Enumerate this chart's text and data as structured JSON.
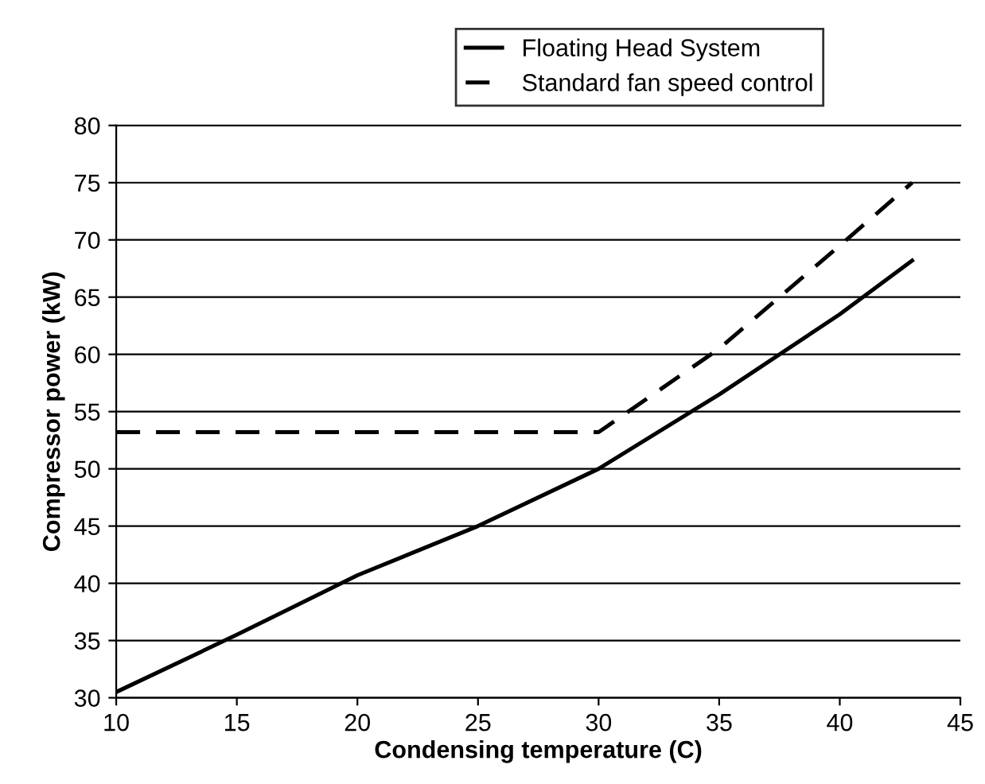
{
  "chart_data": {
    "type": "line",
    "xlabel": "Condensing temperature (C)",
    "ylabel": "Compressor power (kW)",
    "xlim": [
      10,
      45
    ],
    "xticks": [
      10,
      15,
      20,
      25,
      30,
      35,
      40,
      45
    ],
    "ylim": [
      30,
      80
    ],
    "yticks": [
      30,
      35,
      40,
      45,
      50,
      55,
      60,
      65,
      70,
      75,
      80
    ],
    "grid": "y",
    "legend": "top",
    "marker": "none",
    "series": [
      {
        "name": "Floating Head System",
        "color": "#000000",
        "line_style": "solid",
        "x": [
          10,
          15,
          20,
          25,
          30,
          35,
          40,
          43
        ],
        "values": [
          30.5,
          35.5,
          40.7,
          45,
          50,
          56.5,
          63.5,
          68.2
        ]
      },
      {
        "name": "Standard fan speed control",
        "color": "#000000",
        "line_style": "dashed",
        "x": [
          10,
          30,
          35,
          40,
          43
        ],
        "values": [
          53.2,
          53.2,
          60.5,
          69.5,
          75
        ]
      }
    ]
  }
}
